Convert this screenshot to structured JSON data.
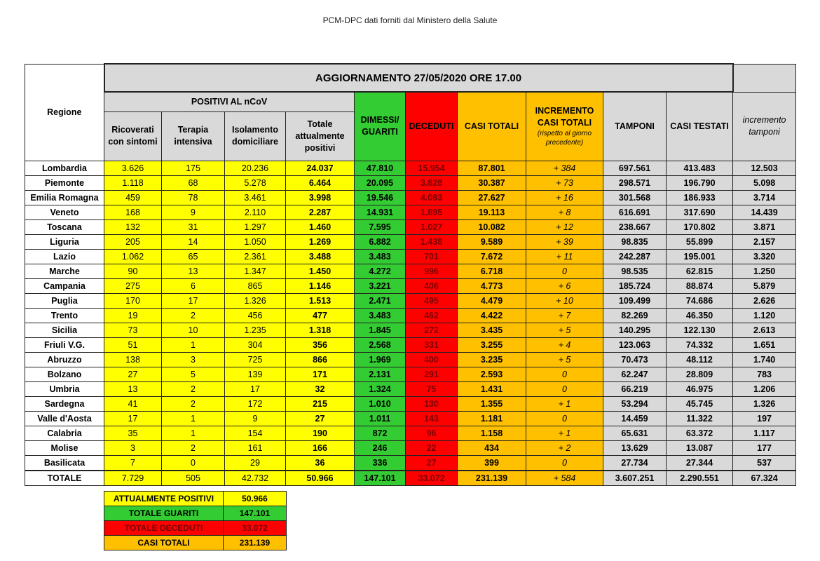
{
  "header": {
    "title": "PCM-DPC dati forniti dal Ministero della Salute"
  },
  "table": {
    "regione": "Regione",
    "update": "AGGIORNAMENTO 27/05/2020 ORE 17.00",
    "group": "POSITIVI AL nCoV",
    "columns": [
      "Ricoverati con sintomi",
      "Terapia intensiva",
      "Isolamento domiciliare",
      "Totale attualmente positivi",
      "DIMESSI/ GUARITI",
      "DECEDUTI",
      "CASI TOTALI",
      "INCREMENTO CASI TOTALI",
      "TAMPONI",
      "CASI TESTATI",
      "incremento tamponi"
    ],
    "incremento_note": "(rispetto al giorno precedente)",
    "rows": [
      [
        "Lombardia",
        "3.626",
        "175",
        "20.236",
        "24.037",
        "47.810",
        "15.954",
        "87.801",
        "+ 384",
        "697.561",
        "413.483",
        "12.503"
      ],
      [
        "Piemonte",
        "1.118",
        "68",
        "5.278",
        "6.464",
        "20.095",
        "3.828",
        "30.387",
        "+ 73",
        "298.571",
        "196.790",
        "5.098"
      ],
      [
        "Emilia Romagna",
        "459",
        "78",
        "3.461",
        "3.998",
        "19.546",
        "4.083",
        "27.627",
        "+ 16",
        "301.568",
        "186.933",
        "3.714"
      ],
      [
        "Veneto",
        "168",
        "9",
        "2.110",
        "2.287",
        "14.931",
        "1.895",
        "19.113",
        "+ 8",
        "616.691",
        "317.690",
        "14.439"
      ],
      [
        "Toscana",
        "132",
        "31",
        "1.297",
        "1.460",
        "7.595",
        "1.027",
        "10.082",
        "+ 12",
        "238.667",
        "170.802",
        "3.871"
      ],
      [
        "Liguria",
        "205",
        "14",
        "1.050",
        "1.269",
        "6.882",
        "1.438",
        "9.589",
        "+ 39",
        "98.835",
        "55.899",
        "2.157"
      ],
      [
        "Lazio",
        "1.062",
        "65",
        "2.361",
        "3.488",
        "3.483",
        "701",
        "7.672",
        "+ 11",
        "242.287",
        "195.001",
        "3.320"
      ],
      [
        "Marche",
        "90",
        "13",
        "1.347",
        "1.450",
        "4.272",
        "996",
        "6.718",
        "0",
        "98.535",
        "62.815",
        "1.250"
      ],
      [
        "Campania",
        "275",
        "6",
        "865",
        "1.146",
        "3.221",
        "406",
        "4.773",
        "+ 6",
        "185.724",
        "88.874",
        "5.879"
      ],
      [
        "Puglia",
        "170",
        "17",
        "1.326",
        "1.513",
        "2.471",
        "495",
        "4.479",
        "+ 10",
        "109.499",
        "74.686",
        "2.626"
      ],
      [
        "Trento",
        "19",
        "2",
        "456",
        "477",
        "3.483",
        "462",
        "4.422",
        "+ 7",
        "82.269",
        "46.350",
        "1.120"
      ],
      [
        "Sicilia",
        "73",
        "10",
        "1.235",
        "1.318",
        "1.845",
        "272",
        "3.435",
        "+ 5",
        "140.295",
        "122.130",
        "2.613"
      ],
      [
        "Friuli V.G.",
        "51",
        "1",
        "304",
        "356",
        "2.568",
        "331",
        "3.255",
        "+ 4",
        "123.063",
        "74.332",
        "1.651"
      ],
      [
        "Abruzzo",
        "138",
        "3",
        "725",
        "866",
        "1.969",
        "400",
        "3.235",
        "+ 5",
        "70.473",
        "48.112",
        "1.740"
      ],
      [
        "Bolzano",
        "27",
        "5",
        "139",
        "171",
        "2.131",
        "291",
        "2.593",
        "0",
        "62.247",
        "28.809",
        "783"
      ],
      [
        "Umbria",
        "13",
        "2",
        "17",
        "32",
        "1.324",
        "75",
        "1.431",
        "0",
        "66.219",
        "46.975",
        "1.206"
      ],
      [
        "Sardegna",
        "41",
        "2",
        "172",
        "215",
        "1.010",
        "130",
        "1.355",
        "+ 1",
        "53.294",
        "45.745",
        "1.326"
      ],
      [
        "Valle d'Aosta",
        "17",
        "1",
        "9",
        "27",
        "1.011",
        "143",
        "1.181",
        "0",
        "14.459",
        "11.322",
        "197"
      ],
      [
        "Calabria",
        "35",
        "1",
        "154",
        "190",
        "872",
        "96",
        "1.158",
        "+ 1",
        "65.631",
        "63.372",
        "1.117"
      ],
      [
        "Molise",
        "3",
        "2",
        "161",
        "166",
        "246",
        "22",
        "434",
        "+ 2",
        "13.629",
        "13.087",
        "177"
      ],
      [
        "Basilicata",
        "7",
        "0",
        "29",
        "36",
        "336",
        "27",
        "399",
        "0",
        "27.734",
        "27.344",
        "537"
      ]
    ],
    "total": [
      "TOTALE",
      "7.729",
      "505",
      "42.732",
      "50.966",
      "147.101",
      "33.072",
      "231.139",
      "+ 584",
      "3.607.251",
      "2.290.551",
      "67.324"
    ]
  },
  "summary": {
    "rows": [
      [
        "ATTUALMENTE POSITIVI",
        "50.966"
      ],
      [
        "TOTALE GUARITI",
        "147.101"
      ],
      [
        "TOTALE DECEDUTI",
        "33.072"
      ],
      [
        "CASI TOTALI",
        "231.139"
      ]
    ]
  }
}
